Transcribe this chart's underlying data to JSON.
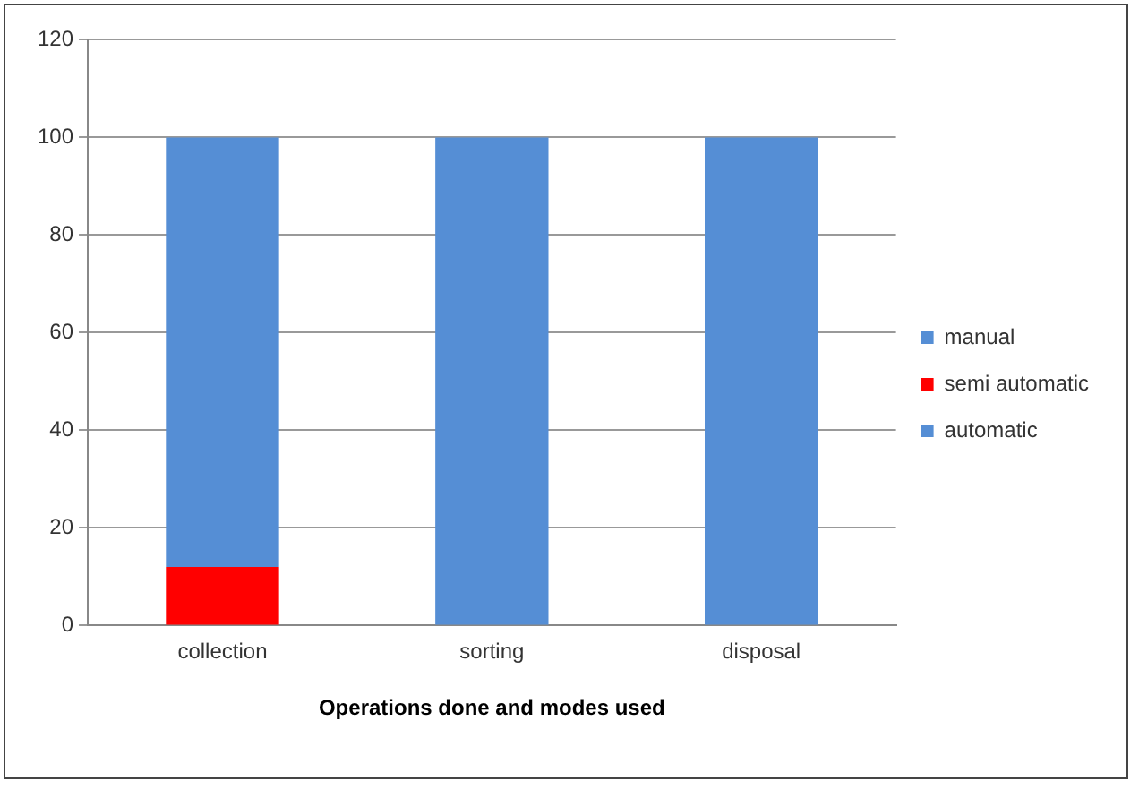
{
  "chart_data": {
    "type": "bar",
    "stacked": true,
    "xlabel": "Operations done and modes used",
    "categories": [
      "collection",
      "sorting",
      "disposal"
    ],
    "series": [
      {
        "name": "automatic",
        "color": "#558ed5",
        "values": [
          0,
          0,
          0
        ]
      },
      {
        "name": "semi automatic",
        "color": "#ff0000",
        "values": [
          12,
          0,
          0
        ]
      },
      {
        "name": "manual",
        "color": "#558ed5",
        "values": [
          88,
          100,
          100
        ]
      }
    ],
    "ylim": [
      0,
      120
    ],
    "yticks": [
      0,
      20,
      40,
      60,
      80,
      100,
      120
    ],
    "grid": "y",
    "legend": "right"
  }
}
